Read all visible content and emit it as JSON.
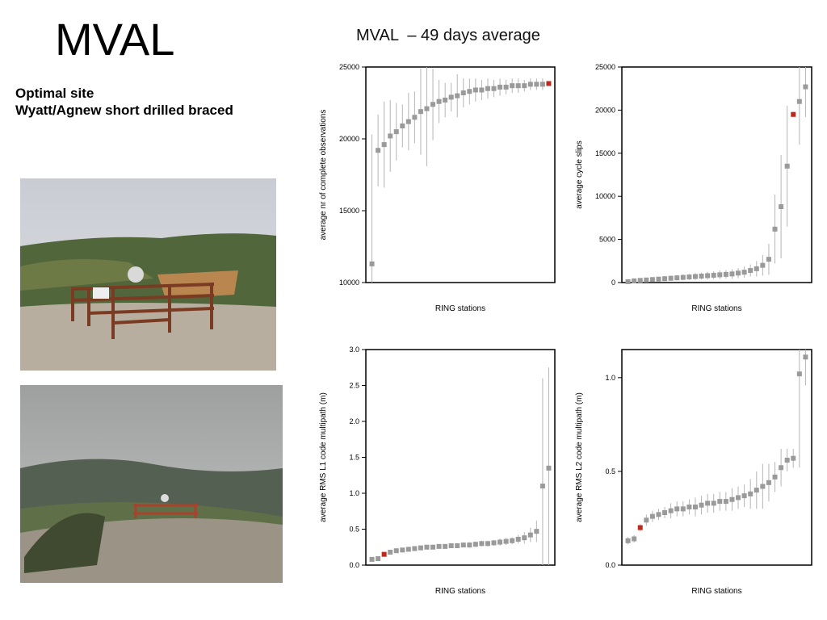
{
  "title": "MVAL",
  "site_notes": [
    "Optimal site",
    "Wyatt/Agnew short drilled braced"
  ],
  "figure_title": "MVAL  – 49 days average",
  "chart_data": [
    {
      "type": "scatter",
      "ylabel": "average nr of complete observations",
      "xlabel": "RING stations",
      "xlim": [
        0,
        31
      ],
      "ylim": [
        10000,
        25000
      ],
      "yticks": [
        10000,
        15000,
        20000,
        25000
      ],
      "series": [
        {
          "color": "#9a9a9a",
          "x": [
            1,
            2,
            3,
            4,
            5,
            6,
            7,
            8,
            9,
            10,
            11,
            12,
            13,
            14,
            15,
            16,
            17,
            18,
            19,
            20,
            21,
            22,
            23,
            24,
            25,
            26,
            27,
            28,
            29
          ],
          "values": [
            11300,
            19200,
            19600,
            20200,
            20500,
            20900,
            21200,
            21500,
            21900,
            22100,
            22400,
            22600,
            22700,
            22900,
            23000,
            23200,
            23300,
            23400,
            23400,
            23500,
            23500,
            23600,
            23600,
            23700,
            23700,
            23700,
            23800,
            23800,
            23800
          ],
          "errors": [
            9000,
            2500,
            3000,
            2500,
            2000,
            1500,
            2000,
            1800,
            3000,
            4000,
            2500,
            1500,
            1200,
            1000,
            1500,
            1000,
            900,
            800,
            700,
            700,
            600,
            600,
            500,
            500,
            500,
            400,
            400,
            400,
            400
          ]
        },
        {
          "color": "#c0281e",
          "x": [
            30
          ],
          "values": [
            23850
          ],
          "errors": [
            100
          ]
        }
      ]
    },
    {
      "type": "scatter",
      "ylabel": "average cycle slips",
      "xlabel": "RING stations",
      "xlim": [
        0,
        31
      ],
      "ylim": [
        0,
        25000
      ],
      "yticks": [
        0,
        5000,
        10000,
        15000,
        20000,
        25000
      ],
      "series": [
        {
          "color": "#9a9a9a",
          "x": [
            1,
            2,
            3,
            4,
            5,
            6,
            7,
            8,
            9,
            10,
            11,
            12,
            13,
            14,
            15,
            16,
            17,
            18,
            19,
            20,
            21,
            22,
            23,
            24,
            25,
            26,
            27,
            29,
            30
          ],
          "values": [
            100,
            200,
            250,
            300,
            350,
            400,
            450,
            500,
            550,
            600,
            650,
            700,
            750,
            800,
            850,
            900,
            950,
            1000,
            1100,
            1200,
            1400,
            1600,
            2000,
            2700,
            6200,
            8800,
            13500,
            21000,
            22700
          ],
          "errors": [
            100,
            150,
            200,
            200,
            250,
            250,
            300,
            300,
            300,
            350,
            350,
            400,
            400,
            450,
            450,
            500,
            500,
            550,
            600,
            650,
            700,
            900,
            1200,
            1800,
            4000,
            6000,
            7000,
            5000,
            3500
          ]
        },
        {
          "color": "#c0281e",
          "x": [
            28
          ],
          "values": [
            19500
          ],
          "errors": [
            300
          ]
        }
      ]
    },
    {
      "type": "scatter",
      "ylabel": "average RMS L1 code multipath (m)",
      "xlabel": "RING stations",
      "xlim": [
        0,
        31
      ],
      "ylim": [
        0,
        3
      ],
      "yticks": [
        {
          "value": 0,
          "label": "0.0"
        },
        0.5,
        {
          "value": 1,
          "label": "1.0"
        },
        1.5,
        {
          "value": 2,
          "label": "2.0"
        },
        2.5,
        {
          "value": 3,
          "label": "3.0"
        }
      ],
      "series": [
        {
          "color": "#9a9a9a",
          "x": [
            1,
            2,
            4,
            5,
            6,
            7,
            8,
            9,
            10,
            11,
            12,
            13,
            14,
            15,
            16,
            17,
            18,
            19,
            20,
            21,
            22,
            23,
            24,
            25,
            26,
            27,
            28,
            29,
            30
          ],
          "values": [
            0.08,
            0.09,
            0.18,
            0.2,
            0.21,
            0.22,
            0.23,
            0.24,
            0.25,
            0.25,
            0.26,
            0.26,
            0.27,
            0.27,
            0.28,
            0.28,
            0.29,
            0.3,
            0.3,
            0.31,
            0.32,
            0.33,
            0.34,
            0.36,
            0.38,
            0.42,
            0.47,
            1.1,
            1.35
          ],
          "errors": [
            0.02,
            0.02,
            0.03,
            0.03,
            0.03,
            0.03,
            0.03,
            0.03,
            0.03,
            0.03,
            0.03,
            0.03,
            0.03,
            0.03,
            0.03,
            0.04,
            0.04,
            0.04,
            0.04,
            0.04,
            0.05,
            0.05,
            0.05,
            0.06,
            0.08,
            0.1,
            0.15,
            1.5,
            1.4
          ]
        },
        {
          "color": "#c0281e",
          "x": [
            3
          ],
          "values": [
            0.15
          ],
          "errors": [
            0.02
          ]
        }
      ]
    },
    {
      "type": "scatter",
      "ylabel": "average RMS L2 code multipath (m)",
      "xlabel": "RING stations",
      "xlim": [
        0,
        31
      ],
      "ylim": [
        0,
        1.15
      ],
      "yticks": [
        {
          "value": 0,
          "label": "0.0"
        },
        0.5,
        {
          "value": 1,
          "label": "1.0"
        }
      ],
      "series": [
        {
          "color": "#9a9a9a",
          "x": [
            1,
            2,
            4,
            5,
            6,
            7,
            8,
            9,
            10,
            11,
            12,
            13,
            14,
            15,
            16,
            17,
            18,
            19,
            20,
            21,
            22,
            23,
            24,
            25,
            26,
            27,
            28,
            29,
            30
          ],
          "values": [
            0.13,
            0.14,
            0.24,
            0.26,
            0.27,
            0.28,
            0.29,
            0.3,
            0.3,
            0.31,
            0.31,
            0.32,
            0.33,
            0.33,
            0.34,
            0.34,
            0.35,
            0.36,
            0.37,
            0.38,
            0.4,
            0.42,
            0.44,
            0.47,
            0.52,
            0.56,
            0.57,
            1.02,
            1.11
          ],
          "errors": [
            0.02,
            0.02,
            0.03,
            0.03,
            0.03,
            0.03,
            0.04,
            0.04,
            0.04,
            0.04,
            0.05,
            0.05,
            0.05,
            0.05,
            0.05,
            0.05,
            0.06,
            0.06,
            0.06,
            0.08,
            0.1,
            0.12,
            0.1,
            0.08,
            0.1,
            0.06,
            0.05,
            0.5,
            0.15
          ]
        },
        {
          "color": "#c0281e",
          "x": [
            3
          ],
          "values": [
            0.2
          ],
          "errors": [
            0.02
          ]
        }
      ]
    }
  ]
}
